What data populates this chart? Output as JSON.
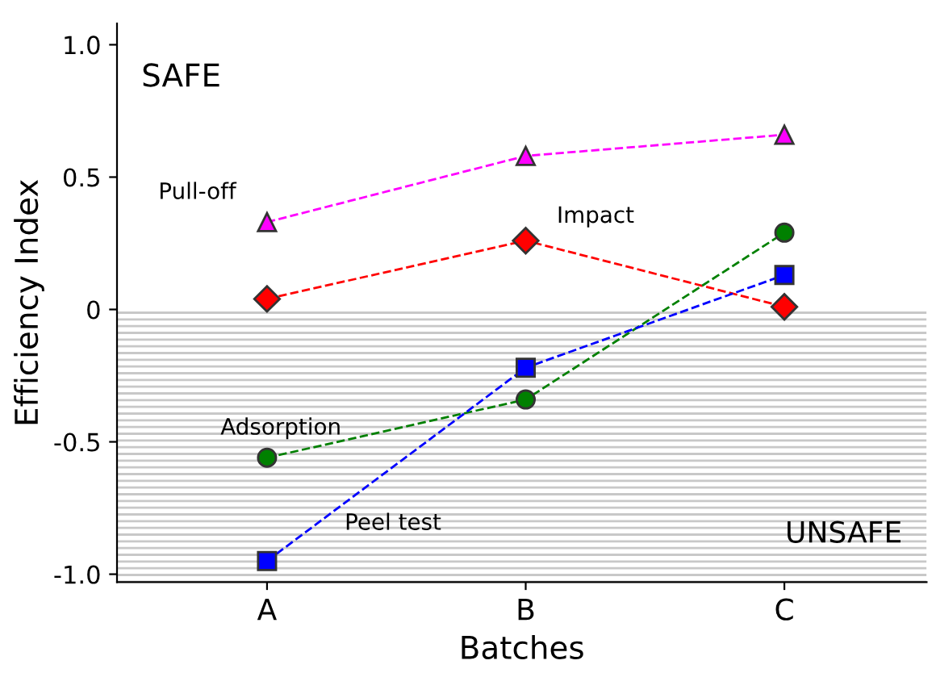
{
  "chart_data": {
    "type": "line",
    "xlabel": "Batches",
    "ylabel": "Efficiency Index",
    "categories": [
      "A",
      "B",
      "C"
    ],
    "series": [
      {
        "name": "Pull-off",
        "color": "#ff00ff",
        "marker": "triangle",
        "line_style": "dashed",
        "values": [
          0.33,
          0.58,
          0.66
        ]
      },
      {
        "name": "Impact",
        "color": "#ff0000",
        "marker": "diamond",
        "line_style": "dashed",
        "values": [
          0.04,
          0.26,
          0.01
        ]
      },
      {
        "name": "Adsorption",
        "color": "#008000",
        "marker": "circle",
        "line_style": "dashed",
        "values": [
          -0.56,
          -0.34,
          0.29
        ]
      },
      {
        "name": "Peel test",
        "color": "#0000ff",
        "marker": "square",
        "line_style": "dashed",
        "values": [
          -0.95,
          -0.22,
          0.13
        ]
      }
    ],
    "ylim": [
      -1.03,
      1.08
    ],
    "yticks": [
      {
        "value": -1.0,
        "label": "-1.0"
      },
      {
        "value": -0.5,
        "label": "-0.5"
      },
      0,
      0.5,
      {
        "value": 1.0,
        "label": "1.0"
      }
    ],
    "bands": [
      {
        "axis": "y",
        "from": -1.03,
        "to": 0,
        "label": "UNSAFE",
        "color": "#c8c8c8"
      }
    ],
    "annotations": [
      "SAFE"
    ],
    "grid": false,
    "legend": false
  }
}
